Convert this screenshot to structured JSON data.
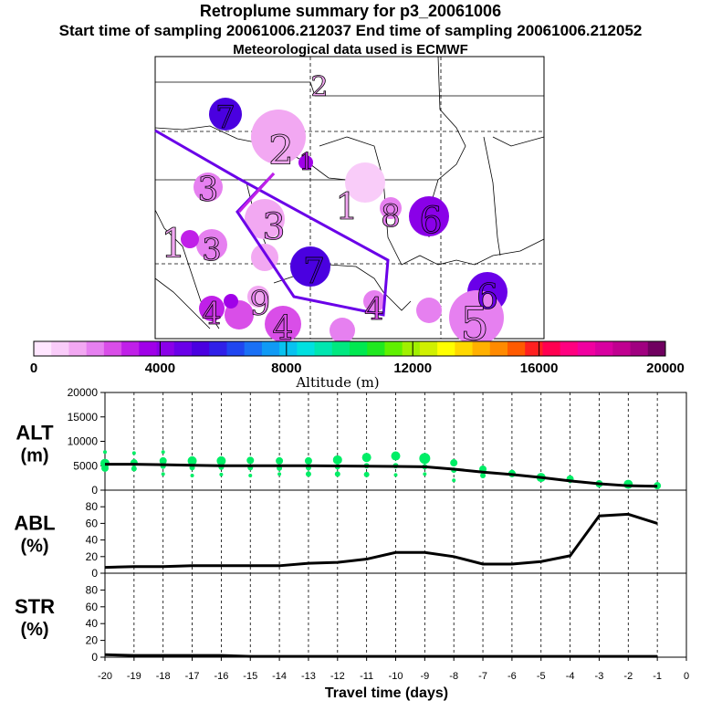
{
  "header": {
    "title": "Retroplume summary for p3_20061006",
    "sampling_line": "Start time of sampling 20061006.212037     End time of sampling 20061006.212052",
    "met_line": "Meteorological data used is ECMWF"
  },
  "colorbar": {
    "label": "Altitude (m)",
    "tick_labels": [
      "0",
      "4000",
      "8000",
      "12000",
      "16000",
      "20000"
    ],
    "colors": [
      "#ffe6ff",
      "#f9ccf9",
      "#f2a8f2",
      "#e680f0",
      "#d94ee8",
      "#c020e8",
      "#a000e8",
      "#8a00e8",
      "#6a00e8",
      "#4a00e0",
      "#3020e8",
      "#2046f0",
      "#1a70f5",
      "#109af5",
      "#08c2f0",
      "#00e0e0",
      "#00e6b0",
      "#00e880",
      "#00e850",
      "#20e820",
      "#60f000",
      "#a0f000",
      "#d0f000",
      "#ffff00",
      "#ffd800",
      "#ffb000",
      "#ff8a00",
      "#ff5a00",
      "#ff2020",
      "#ff0050",
      "#ff0080",
      "#f000a0",
      "#d800a0",
      "#c00090",
      "#a00080",
      "#700060"
    ]
  },
  "map_labels": [
    {
      "n": "7",
      "c": "#4a00e0"
    },
    {
      "n": "2",
      "c": "#f2a8f2"
    },
    {
      "n": "2",
      "c": "#f2a8f2"
    },
    {
      "n": "3",
      "c": "#e680f0"
    },
    {
      "n": "3",
      "c": "#e680f0"
    },
    {
      "n": "1",
      "c": "#f2a8f2"
    },
    {
      "n": "1",
      "c": "#f2a8f2"
    },
    {
      "n": "8",
      "c": "#e680f0"
    },
    {
      "n": "6",
      "c": "#8a00e8"
    },
    {
      "n": "1",
      "c": "#c020e8"
    },
    {
      "n": "3",
      "c": "#e680f0"
    },
    {
      "n": "7",
      "c": "#4a00e0"
    },
    {
      "n": "6",
      "c": "#6a00e8"
    },
    {
      "n": "4",
      "c": "#d94ee8"
    },
    {
      "n": "4",
      "c": "#d94ee8"
    },
    {
      "n": "5",
      "c": "#e680f0"
    },
    {
      "n": "4",
      "c": "#d94ee8"
    },
    {
      "n": "9",
      "c": "#e680f0"
    }
  ],
  "chart_data": [
    {
      "type": "line",
      "panel": "ALT",
      "ylabel_line1": "ALT",
      "ylabel_line2": "(m)",
      "x": [
        -20,
        -19,
        -18,
        -17,
        -16,
        -15,
        -14,
        -13,
        -12,
        -11,
        -10,
        -9,
        -8,
        -7,
        -6,
        -5,
        -4,
        -3,
        -2,
        -1
      ],
      "xlim": [
        -20,
        0
      ],
      "ylim": [
        0,
        20000
      ],
      "yticks": [
        "0",
        "5000",
        "10000",
        "15000",
        "20000"
      ],
      "series": [
        {
          "name": "mean altitude",
          "values": [
            5300,
            5300,
            5200,
            5100,
            5000,
            5000,
            5000,
            5000,
            4950,
            4900,
            4850,
            4800,
            4300,
            3700,
            3200,
            2600,
            1900,
            1300,
            900,
            800
          ]
        }
      ],
      "dots": [
        {
          "x": -20,
          "y": [
            7800,
            5500,
            4500
          ],
          "s": [
            2,
            5,
            4
          ]
        },
        {
          "x": -19,
          "y": [
            7600,
            5600,
            4400
          ],
          "s": [
            2,
            4,
            3
          ]
        },
        {
          "x": -18,
          "y": [
            7800,
            6000,
            4900,
            3300
          ],
          "s": [
            2,
            4,
            3,
            2
          ]
        },
        {
          "x": -17,
          "y": [
            6000,
            4600,
            3000
          ],
          "s": [
            5,
            3,
            2
          ]
        },
        {
          "x": -16,
          "y": [
            6000,
            4700,
            3200
          ],
          "s": [
            5,
            3,
            2
          ]
        },
        {
          "x": -15,
          "y": [
            6100,
            4600,
            3000
          ],
          "s": [
            4,
            3,
            2
          ]
        },
        {
          "x": -14,
          "y": [
            6000,
            4500,
            3300
          ],
          "s": [
            4,
            3,
            2
          ]
        },
        {
          "x": -13,
          "y": [
            6000,
            4600,
            3300
          ],
          "s": [
            4,
            3,
            3
          ]
        },
        {
          "x": -12,
          "y": [
            6200,
            4800,
            3300
          ],
          "s": [
            5,
            3,
            3
          ]
        },
        {
          "x": -11,
          "y": [
            6700,
            5000,
            3200
          ],
          "s": [
            5,
            3,
            3
          ]
        },
        {
          "x": -10,
          "y": [
            7000,
            5000,
            3100
          ],
          "s": [
            5,
            3,
            2
          ]
        },
        {
          "x": -9,
          "y": [
            6500,
            4800,
            3300
          ],
          "s": [
            6,
            3,
            2
          ]
        },
        {
          "x": -8,
          "y": [
            5600,
            4100,
            2000
          ],
          "s": [
            4,
            3,
            2
          ]
        },
        {
          "x": -7,
          "y": [
            4300,
            3000
          ],
          "s": [
            4,
            3
          ]
        },
        {
          "x": -6,
          "y": [
            3400,
            3200
          ],
          "s": [
            4,
            3
          ]
        },
        {
          "x": -5,
          "y": [
            2600,
            2300
          ],
          "s": [
            5,
            3
          ]
        },
        {
          "x": -4,
          "y": [
            2300,
            1800
          ],
          "s": [
            4,
            2
          ]
        },
        {
          "x": -3,
          "y": [
            1300
          ],
          "s": [
            4
          ]
        },
        {
          "x": -2,
          "y": [
            1200,
            900
          ],
          "s": [
            5,
            3
          ]
        },
        {
          "x": -1,
          "y": [
            900
          ],
          "s": [
            4
          ]
        }
      ],
      "dot_color": "#00ee66"
    },
    {
      "type": "line",
      "panel": "ABL",
      "ylabel_line1": "ABL",
      "ylabel_line2": "(%)",
      "x": [
        -20,
        -19,
        -18,
        -17,
        -16,
        -15,
        -14,
        -13,
        -12,
        -11,
        -10,
        -9,
        -8,
        -7,
        -6,
        -5,
        -4,
        -3,
        -2,
        -1
      ],
      "xlim": [
        -20,
        0
      ],
      "ylim": [
        0,
        100
      ],
      "yticks": [
        "0",
        "20",
        "40",
        "60",
        "80"
      ],
      "series": [
        {
          "name": "ABL fraction",
          "values": [
            7,
            8,
            8,
            9,
            9,
            9,
            9,
            12,
            13,
            17,
            25,
            25,
            20,
            11,
            11,
            14,
            21,
            69,
            71,
            60
          ]
        }
      ]
    },
    {
      "type": "line",
      "panel": "STR",
      "ylabel_line1": "STR",
      "ylabel_line2": "(%)",
      "x": [
        -20,
        -19,
        -18,
        -17,
        -16,
        -15,
        -14,
        -13,
        -12,
        -11,
        -10,
        -9,
        -8,
        -7,
        -6,
        -5,
        -4,
        -3,
        -2,
        -1
      ],
      "xlim": [
        -20,
        0
      ],
      "ylim": [
        0,
        100
      ],
      "yticks": [
        "0",
        "20",
        "40",
        "60",
        "80"
      ],
      "series": [
        {
          "name": "stratospheric fraction",
          "values": [
            3,
            2,
            2,
            2,
            2,
            1,
            1,
            1,
            1,
            1,
            1,
            1,
            1,
            1,
            1,
            1,
            1,
            1,
            1,
            1
          ]
        }
      ],
      "xlabel": "Travel time (days)",
      "xtick_labels": [
        "-20",
        "-19",
        "-18",
        "-17",
        "-16",
        "-15",
        "-14",
        "-13",
        "-12",
        "-11",
        "-10",
        "-9",
        "-8",
        "-7",
        "-6",
        "-5",
        "-4",
        "-3",
        "-2",
        "-1",
        "0"
      ]
    }
  ]
}
